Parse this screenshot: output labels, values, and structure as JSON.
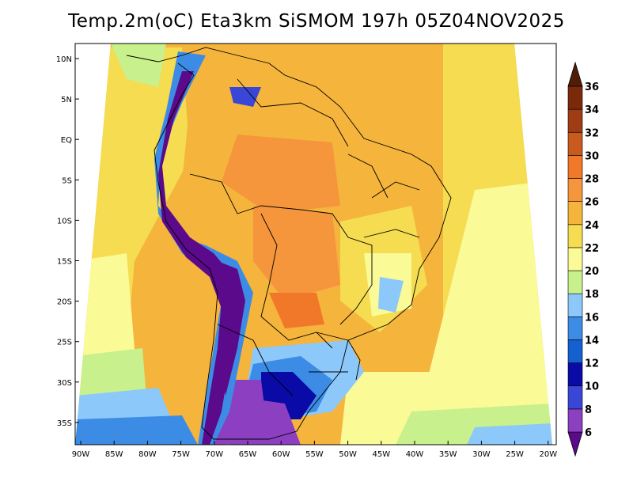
{
  "title": "Temp.2m(oC) Eta3km SiSMOM 197h 05Z04NOV2025",
  "units": "oC",
  "latitude_labels": [
    "10N",
    "5N",
    "EQ",
    "5S",
    "10S",
    "15S",
    "20S",
    "25S",
    "30S",
    "35S"
  ],
  "longitude_labels": [
    "90W",
    "85W",
    "80W",
    "75W",
    "70W",
    "65W",
    "60W",
    "55W",
    "50W",
    "45W",
    "40W",
    "35W",
    "30W",
    "25W",
    "20W"
  ],
  "colorbar": {
    "labels": [
      "6",
      "8",
      "10",
      "12",
      "14",
      "16",
      "18",
      "20",
      "22",
      "24",
      "26",
      "28",
      "30",
      "32",
      "34",
      "36"
    ],
    "colors": [
      "#5a0a8a",
      "#8c3fc0",
      "#3a46d6",
      "#0a0aa6",
      "#1460d0",
      "#3c8ce6",
      "#8cc8fa",
      "#c8f08c",
      "#fafa96",
      "#f5dc50",
      "#f5b43c",
      "#f5963c",
      "#f07828",
      "#c85a1e",
      "#a03c14",
      "#7a2a0a",
      "#501e08"
    ]
  }
}
